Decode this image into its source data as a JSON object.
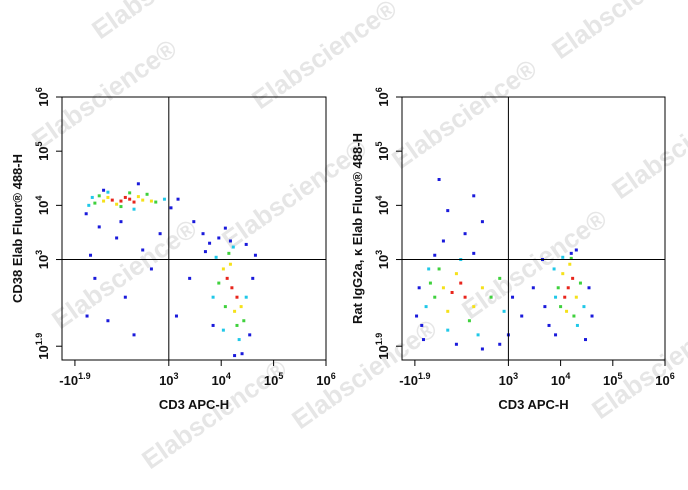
{
  "watermark": "Elabscience®",
  "chart_data": [
    {
      "type": "scatter",
      "xlabel": "CD3 APC-H",
      "ylabel": "CD38 Elab Fluor® 488-H",
      "xlim": [
        -228,
        1000000
      ],
      "ylim": [
        -67,
        1000000
      ],
      "xticks": [
        {
          "value": -79.43,
          "label": "-10",
          "exponent": "1.9"
        },
        {
          "value": 1000,
          "label": "10",
          "exponent": "3"
        },
        {
          "value": 10000,
          "label": "10",
          "exponent": "4"
        },
        {
          "value": 100000,
          "label": "10",
          "exponent": "5"
        },
        {
          "value": 1000000,
          "label": "10",
          "exponent": "6"
        }
      ],
      "yticks": [
        {
          "value": 79.43,
          "label": "10",
          "exponent": "1.9"
        },
        {
          "value": 1000,
          "label": "10",
          "exponent": "3"
        },
        {
          "value": 10000,
          "label": "10",
          "exponent": "4"
        },
        {
          "value": 100000,
          "label": "10",
          "exponent": "5"
        },
        {
          "value": 1000000,
          "label": "10",
          "exponent": "6"
        }
      ],
      "gates": {
        "x": 1000,
        "y": 1000
      },
      "series": [
        {
          "color": "#1a1adb",
          "x": [
            50,
            200,
            400,
            700,
            150,
            500,
            300,
            800,
            600,
            100,
            900,
            250,
            650,
            1100,
            1500,
            4500,
            6000,
            9000,
            12000,
            15000,
            5000,
            30000,
            40000,
            35000,
            25000,
            18000,
            7000,
            45000,
            2500,
            3000,
            1400,
            60,
            450
          ],
          "y": [
            7000,
            4000,
            2500,
            1500,
            800,
            600,
            350,
            900,
            200,
            1200,
            3000,
            19000,
            25000,
            9000,
            13000,
            3000,
            2000,
            2500,
            3800,
            2200,
            1400,
            1900,
            800,
            200,
            0,
            -20,
            300,
            1200,
            800,
            5000,
            400,
            400,
            5000
          ]
        },
        {
          "color": "#20c8e8",
          "x": [
            80,
            950,
            300,
            600,
            120,
            8000,
            30000,
            11000,
            22000,
            17000,
            7000
          ],
          "y": [
            10000,
            13000,
            17500,
            8500,
            14000,
            1100,
            600,
            250,
            150,
            1700,
            600
          ]
        },
        {
          "color": "#3fd13d",
          "x": [
            150,
            850,
            200,
            750,
            450,
            550,
            9000,
            27000,
            14000,
            20000,
            12000
          ],
          "y": [
            11000,
            11500,
            15000,
            16000,
            9500,
            17000,
            750,
            350,
            1300,
            300,
            500
          ]
        },
        {
          "color": "#f5e11a",
          "x": [
            250,
            700,
            400,
            650,
            300,
            800,
            11000,
            24000,
            18000,
            15000
          ],
          "y": [
            12000,
            12500,
            10500,
            14500,
            14000,
            12000,
            900,
            500,
            450,
            950
          ]
        },
        {
          "color": "#e8251c",
          "x": [
            450,
            550,
            350,
            600,
            500,
            16000,
            20000,
            13000
          ],
          "y": [
            12000,
            13000,
            12500,
            11500,
            14000,
            700,
            600,
            800
          ]
        }
      ]
    },
    {
      "type": "scatter",
      "xlabel": "CD3 APC-H",
      "ylabel": "Rat IgG2a, κ Elab Fluor® 488-H",
      "xlim": [
        -228,
        1000000
      ],
      "ylim": [
        -67,
        1000000
      ],
      "xticks": [
        {
          "value": -79.43,
          "label": "-10",
          "exponent": "1.9"
        },
        {
          "value": 1000,
          "label": "10",
          "exponent": "3"
        },
        {
          "value": 10000,
          "label": "10",
          "exponent": "4"
        },
        {
          "value": 100000,
          "label": "10",
          "exponent": "5"
        },
        {
          "value": 1000000,
          "label": "10",
          "exponent": "6"
        }
      ],
      "yticks": [
        {
          "value": 79.43,
          "label": "10",
          "exponent": "1.9"
        },
        {
          "value": 1000,
          "label": "10",
          "exponent": "3"
        },
        {
          "value": 10000,
          "label": "10",
          "exponent": "4"
        },
        {
          "value": 100000,
          "label": "10",
          "exponent": "5"
        },
        {
          "value": 1000000,
          "label": "10",
          "exponent": "6"
        }
      ],
      "gates": {
        "x": 1000,
        "y": 1000
      },
      "series": [
        {
          "color": "#1a1adb",
          "x": [
            0,
            -30,
            20,
            700,
            400,
            1200,
            1800,
            3000,
            5000,
            6000,
            35000,
            40000,
            30000,
            8000,
            150,
            600,
            900,
            200,
            300,
            500,
            600,
            700,
            250,
            20000,
            16000,
            1000,
            -60,
            4500
          ],
          "y": [
            300,
            700,
            150,
            50,
            100,
            600,
            400,
            700,
            500,
            300,
            700,
            400,
            150,
            200,
            1200,
            1300,
            100,
            30000,
            8000,
            3000,
            15000,
            5000,
            2200,
            1500,
            1300,
            200,
            400,
            1000
          ]
        },
        {
          "color": "#20c8e8",
          "x": [
            50,
            950,
            300,
            650,
            80,
            450,
            8000,
            28000,
            11000,
            21000,
            7500
          ],
          "y": [
            500,
            450,
            250,
            200,
            900,
            1000,
            600,
            500,
            1100,
            300,
            900
          ]
        },
        {
          "color": "#3fd13d",
          "x": [
            150,
            800,
            200,
            550,
            900,
            100,
            9000,
            24000,
            10000,
            18000,
            16000
          ],
          "y": [
            600,
            600,
            900,
            350,
            800,
            750,
            700,
            750,
            500,
            400,
            1050
          ]
        },
        {
          "color": "#f5e11a",
          "x": [
            250,
            600,
            400,
            700,
            300,
            11000,
            20000,
            15000,
            13000
          ],
          "y": [
            700,
            500,
            850,
            700,
            450,
            850,
            600,
            950,
            450
          ]
        },
        {
          "color": "#e8251c",
          "x": [
            350,
            500,
            450,
            14000,
            17000,
            12000
          ],
          "y": [
            650,
            600,
            750,
            700,
            800,
            600
          ]
        }
      ]
    }
  ]
}
